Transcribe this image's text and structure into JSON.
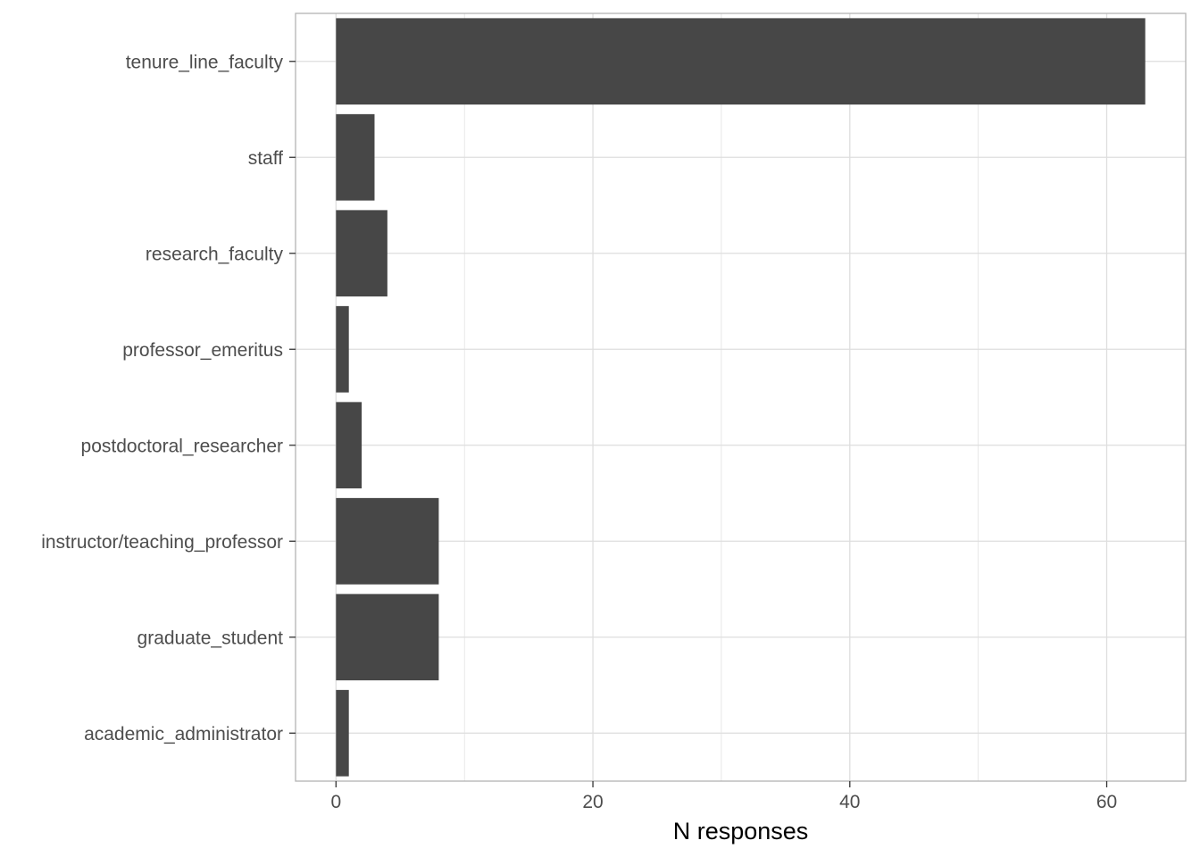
{
  "chart_data": {
    "type": "bar",
    "orientation": "horizontal",
    "title": "",
    "xlabel": "N responses",
    "ylabel": "",
    "categories": [
      "academic_administrator",
      "graduate_student",
      "instructor/teaching_professor",
      "postdoctoral_researcher",
      "professor_emeritus",
      "research_faculty",
      "staff",
      "tenure_line_faculty"
    ],
    "values": [
      1,
      8,
      8,
      2,
      1,
      4,
      3,
      63
    ],
    "xlim": [
      -3.15,
      66.15
    ],
    "x_ticks": [
      0,
      20,
      40,
      60
    ],
    "x_minor_ticks": [
      10,
      30,
      50
    ],
    "grid": true,
    "legend": "none",
    "colors": {
      "bar": "#474747",
      "grid": "#dedede",
      "panel_border": "#b3b3b3",
      "tick_text": "#4d4d4d"
    }
  }
}
